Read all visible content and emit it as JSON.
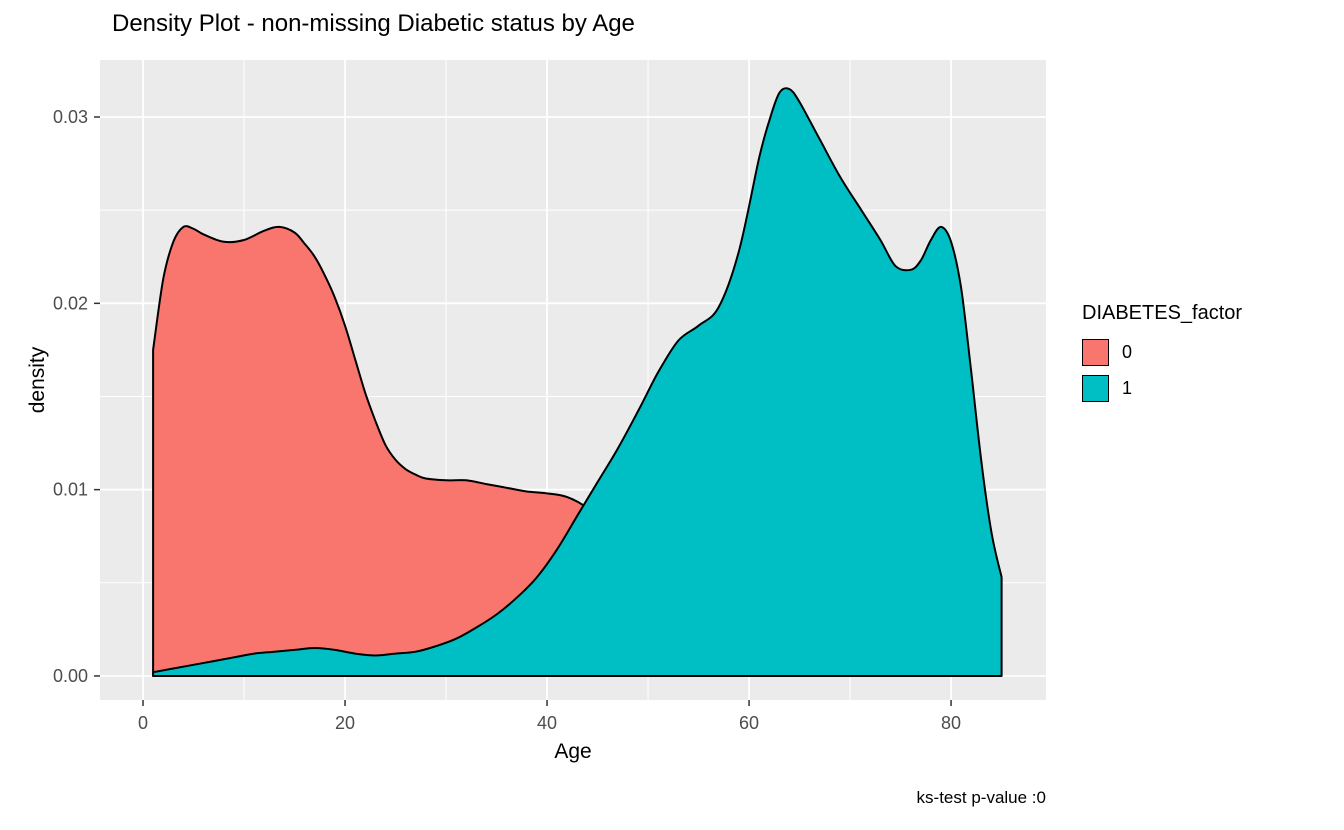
{
  "chart": {
    "title": "Density Plot - non-missing Diabetic status by Age",
    "caption": "ks-test p-value :0"
  },
  "legend": {
    "title": "DIABETES_factor",
    "entries": [
      {
        "label": "0",
        "color": "#F8766D"
      },
      {
        "label": "1",
        "color": "#00BFC4"
      }
    ]
  },
  "chart_data": {
    "type": "area",
    "subtype": "density",
    "title": "Density Plot - non-missing Diabetic status by Age",
    "xlabel": "Age",
    "ylabel": "density",
    "caption": "ks-test p-value :0",
    "xlim": [
      -4.26,
      89.4
    ],
    "ylim": [
      -0.00129,
      0.03306
    ],
    "x_ticks": [
      0,
      20,
      40,
      60,
      80
    ],
    "x_tick_labels": [
      "0",
      "20",
      "40",
      "60",
      "80"
    ],
    "y_ticks": [
      0,
      0.01,
      0.02,
      0.03
    ],
    "y_tick_labels": [
      "0.00",
      "0.01",
      "0.02",
      "0.03"
    ],
    "x_minor_ticks": [
      10,
      30,
      50,
      70
    ],
    "y_minor_ticks": [
      0.005,
      0.015,
      0.025
    ],
    "grid": true,
    "legend_position": "right",
    "panel_background": "#EBEBEB",
    "grid_color": "#FFFFFF",
    "outline_color": "#000000",
    "series": [
      {
        "name": "0",
        "color": "#F8766D",
        "x": [
          1,
          2,
          3,
          4,
          5,
          6,
          8,
          10,
          12,
          13.5,
          15,
          16,
          17,
          18,
          19,
          20,
          21,
          22,
          23,
          24,
          25,
          26,
          27,
          28,
          30,
          32,
          34,
          36,
          38,
          40,
          42,
          44,
          46,
          48,
          50,
          52,
          54,
          56,
          58,
          60,
          63,
          66
        ],
        "y": [
          0.0175,
          0.0213,
          0.0233,
          0.0241,
          0.024,
          0.0237,
          0.0233,
          0.0234,
          0.0239,
          0.0241,
          0.0238,
          0.0232,
          0.0225,
          0.0215,
          0.0203,
          0.0188,
          0.017,
          0.0152,
          0.0137,
          0.0124,
          0.0116,
          0.0111,
          0.0108,
          0.0106,
          0.0105,
          0.0105,
          0.0103,
          0.0101,
          0.0099,
          0.0098,
          0.0096,
          0.009,
          0.0079,
          0.0064,
          0.0048,
          0.0034,
          0.0022,
          0.0013,
          0.0007,
          0.0004,
          0.0001,
          0
        ]
      },
      {
        "name": "1",
        "color": "#00BFC4",
        "x": [
          1,
          3,
          5,
          7,
          9,
          11,
          13,
          15,
          17,
          19,
          21,
          23,
          25,
          27,
          29,
          31,
          33,
          35,
          37,
          39,
          41,
          43,
          45,
          47,
          49,
          51,
          53,
          55,
          57,
          59,
          61,
          62,
          63,
          64,
          65,
          67,
          69,
          71,
          73,
          74.5,
          76,
          77,
          78,
          79,
          80,
          81,
          82,
          83,
          84,
          85
        ],
        "y": [
          0.0002,
          0.0004,
          0.0006,
          0.0008,
          0.001,
          0.0012,
          0.0013,
          0.0014,
          0.0015,
          0.0014,
          0.0012,
          0.0011,
          0.0012,
          0.0013,
          0.0016,
          0.002,
          0.0026,
          0.0033,
          0.0042,
          0.0053,
          0.0068,
          0.0086,
          0.0104,
          0.0122,
          0.0142,
          0.0163,
          0.018,
          0.0188,
          0.0198,
          0.0228,
          0.0278,
          0.0298,
          0.0313,
          0.0315,
          0.0308,
          0.0288,
          0.0268,
          0.0251,
          0.0234,
          0.022,
          0.0218,
          0.0223,
          0.0234,
          0.0241,
          0.0233,
          0.0208,
          0.0163,
          0.0115,
          0.0077,
          0.0053
        ]
      }
    ]
  }
}
